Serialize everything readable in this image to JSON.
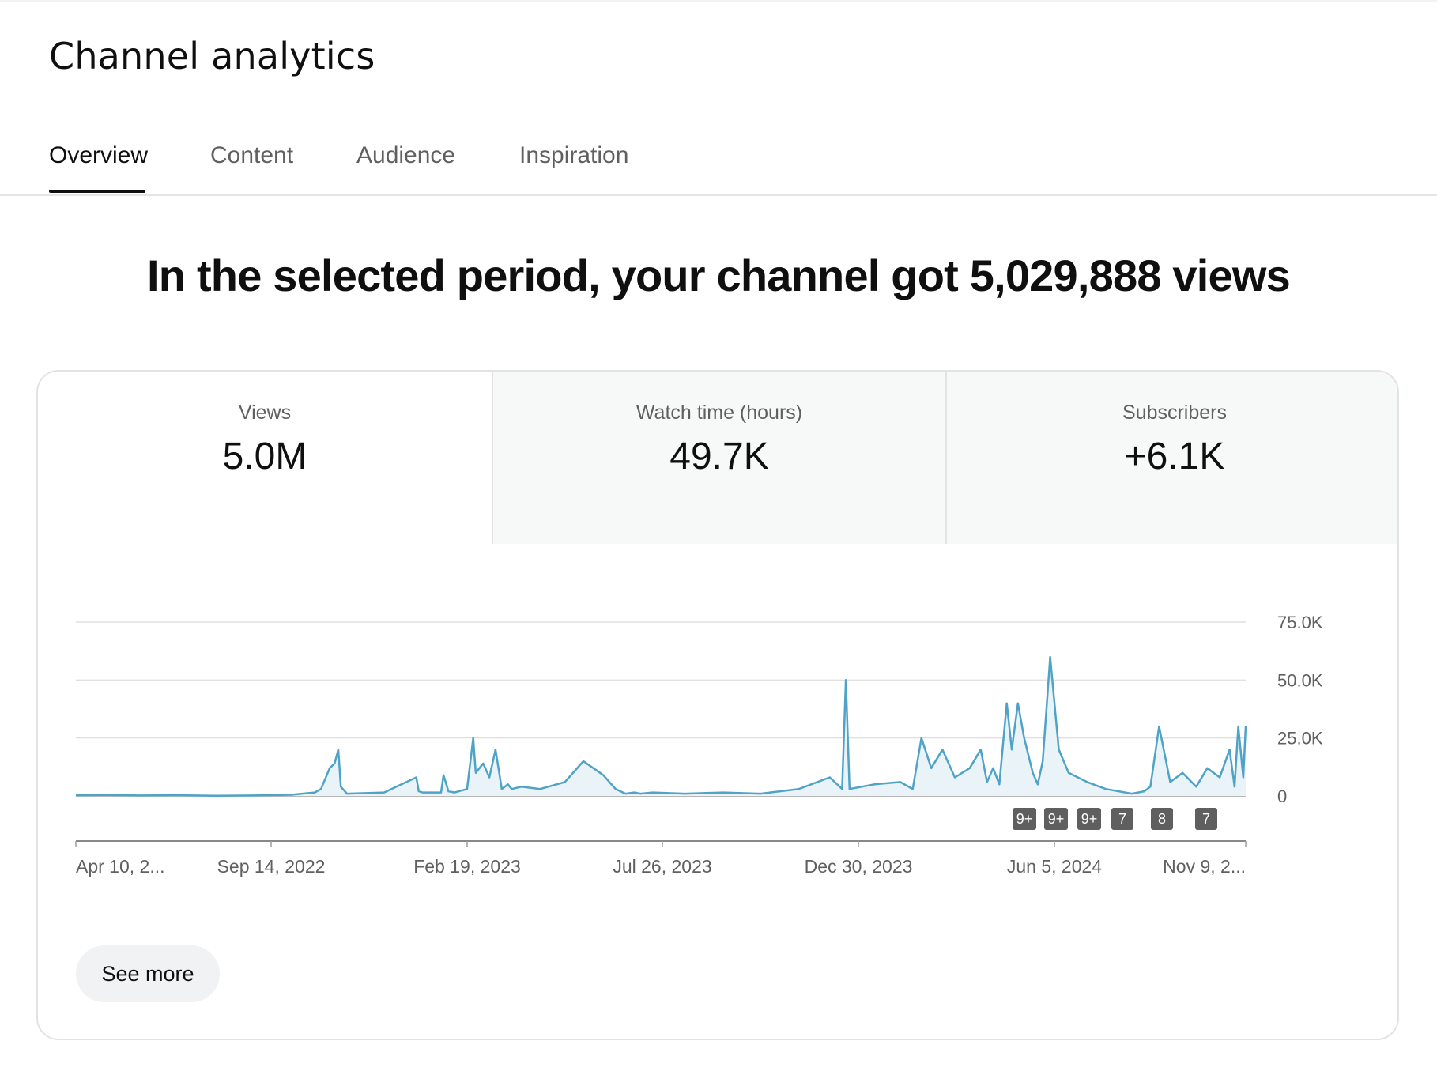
{
  "header": {
    "title": "Channel analytics"
  },
  "tabs": [
    {
      "label": "Overview",
      "active": true
    },
    {
      "label": "Content",
      "active": false
    },
    {
      "label": "Audience",
      "active": false
    },
    {
      "label": "Inspiration",
      "active": false
    }
  ],
  "headline": "In the selected period, your channel got 5,029,888 views",
  "metrics": [
    {
      "label": "Views",
      "value": "5.0M",
      "selected": true
    },
    {
      "label": "Watch time (hours)",
      "value": "49.7K",
      "selected": false
    },
    {
      "label": "Subscribers",
      "value": "+6.1K",
      "selected": false
    }
  ],
  "chart_data": {
    "type": "area",
    "series_color": "#4fa3c7",
    "fill_color": "#eaf3f8",
    "x_tick_labels": [
      "Apr 10, 2...",
      "Sep 14, 2022",
      "Feb 19, 2023",
      "Jul 26, 2023",
      "Dec 30, 2023",
      "Jun 5, 2024",
      "Nov 9, 2..."
    ],
    "y_tick_labels": [
      "0",
      "25.0K",
      "50.0K",
      "75.0K"
    ],
    "ylim": [
      0,
      75000
    ],
    "y_axis_position": "right",
    "grid": true,
    "x": [
      "2022-04-10",
      "2022-05-01",
      "2022-06-01",
      "2022-07-01",
      "2022-08-01",
      "2022-09-01",
      "2022-10-01",
      "2022-10-20",
      "2022-10-25",
      "2022-11-01",
      "2022-11-05",
      "2022-11-08",
      "2022-11-10",
      "2022-11-15",
      "2022-12-15",
      "2023-01-10",
      "2023-01-12",
      "2023-01-15",
      "2023-01-30",
      "2023-02-01",
      "2023-02-05",
      "2023-02-10",
      "2023-02-20",
      "2023-02-25",
      "2023-02-27",
      "2023-03-05",
      "2023-03-10",
      "2023-03-15",
      "2023-03-20",
      "2023-03-25",
      "2023-03-28",
      "2023-04-05",
      "2023-04-20",
      "2023-05-10",
      "2023-05-25",
      "2023-06-10",
      "2023-06-20",
      "2023-06-28",
      "2023-07-05",
      "2023-07-10",
      "2023-07-20",
      "2023-08-15",
      "2023-09-15",
      "2023-10-15",
      "2023-11-15",
      "2023-12-10",
      "2023-12-20",
      "2023-12-23",
      "2023-12-26",
      "2024-01-15",
      "2024-02-05",
      "2024-02-15",
      "2024-02-22",
      "2024-03-01",
      "2024-03-10",
      "2024-03-20",
      "2024-04-01",
      "2024-04-10",
      "2024-04-15",
      "2024-04-20",
      "2024-04-25",
      "2024-05-01",
      "2024-05-05",
      "2024-05-10",
      "2024-05-15",
      "2024-05-22",
      "2024-05-26",
      "2024-05-30",
      "2024-06-05",
      "2024-06-12",
      "2024-06-20",
      "2024-07-05",
      "2024-07-20",
      "2024-08-10",
      "2024-08-20",
      "2024-08-25",
      "2024-09-01",
      "2024-09-10",
      "2024-09-20",
      "2024-10-01",
      "2024-10-10",
      "2024-10-20",
      "2024-10-28",
      "2024-11-01",
      "2024-11-04",
      "2024-11-08",
      "2024-11-10"
    ],
    "values": [
      300,
      400,
      200,
      300,
      100,
      200,
      500,
      1500,
      3000,
      12000,
      14000,
      20000,
      4000,
      1000,
      1500,
      8000,
      2000,
      1500,
      1500,
      9000,
      2000,
      1500,
      3000,
      25000,
      10000,
      14000,
      8000,
      20000,
      3000,
      5000,
      3000,
      4000,
      3000,
      6000,
      15000,
      9000,
      3000,
      1000,
      1500,
      1000,
      1500,
      1000,
      1500,
      1000,
      3000,
      8000,
      3000,
      50000,
      3000,
      5000,
      6000,
      3000,
      25000,
      12000,
      20000,
      8000,
      12000,
      20000,
      6000,
      12000,
      5000,
      40000,
      20000,
      40000,
      25000,
      10000,
      5000,
      15000,
      60000,
      20000,
      10000,
      6000,
      3000,
      1000,
      2000,
      4000,
      30000,
      6000,
      10000,
      4000,
      12000,
      8000,
      20000,
      4000,
      30000,
      8000,
      30000
    ],
    "annotations": [
      "9+",
      "9+",
      "9+",
      "7",
      "8",
      "7"
    ]
  },
  "see_more_label": "See more"
}
